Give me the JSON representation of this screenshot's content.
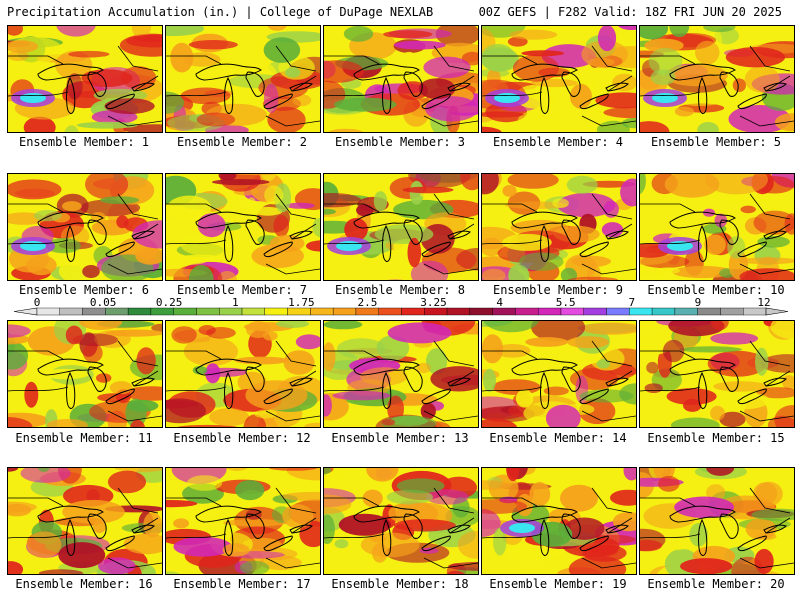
{
  "header": {
    "left_title": "Precipitation Accumulation (in.) | College of DuPage NEXLAB",
    "right_title": "00Z GEFS | F282 Valid: 18Z FRI JUN 20 2025"
  },
  "colors": {
    "trace": "#f0e21a",
    "light_green": "#9ad14a",
    "green": "#5aae3a",
    "dark_green": "#2e8b3c",
    "yellow": "#f5f011",
    "orange": "#f5a11b",
    "red": "#e0251c",
    "dark_red": "#b01226",
    "magenta": "#d227b8",
    "violet": "#a33fe0",
    "cyan": "#39e6f0",
    "gray": "#a0a0a0"
  },
  "scale": {
    "labels": [
      "0",
      "0.05",
      "0.25",
      "1",
      "1.75",
      "2.5",
      "3.25",
      "4",
      "5.5",
      "7",
      "9",
      "12"
    ],
    "colors": [
      "#e6e6e6",
      "#bfbfbf",
      "#8f8f8f",
      "#6e9e6e",
      "#2e8b3c",
      "#3c9e3c",
      "#5aae3a",
      "#7fc243",
      "#9ad14a",
      "#c4e03c",
      "#f5f011",
      "#f5d216",
      "#f5b51b",
      "#f5a11b",
      "#f07a1a",
      "#eb4f1b",
      "#e0251c",
      "#c8141f",
      "#b01226",
      "#8e0e2e",
      "#a0125a",
      "#c81e8e",
      "#d227b8",
      "#e34ae0",
      "#a33fe0",
      "#7a7aff",
      "#39e6f0",
      "#36c8c8",
      "#5ab0b0",
      "#8a8a8a",
      "#a0a0a0",
      "#c8c8c8"
    ]
  },
  "members": [
    {
      "label": "Ensemble Member: 1"
    },
    {
      "label": "Ensemble Member: 2"
    },
    {
      "label": "Ensemble Member: 3"
    },
    {
      "label": "Ensemble Member: 4"
    },
    {
      "label": "Ensemble Member: 5"
    },
    {
      "label": "Ensemble Member: 6"
    },
    {
      "label": "Ensemble Member: 7"
    },
    {
      "label": "Ensemble Member: 8"
    },
    {
      "label": "Ensemble Member: 9"
    },
    {
      "label": "Ensemble Member: 10"
    },
    {
      "label": "Ensemble Member: 11"
    },
    {
      "label": "Ensemble Member: 12"
    },
    {
      "label": "Ensemble Member: 13"
    },
    {
      "label": "Ensemble Member: 14"
    },
    {
      "label": "Ensemble Member: 15"
    },
    {
      "label": "Ensemble Member: 16"
    },
    {
      "label": "Ensemble Member: 17"
    },
    {
      "label": "Ensemble Member: 18"
    },
    {
      "label": "Ensemble Member: 19"
    },
    {
      "label": "Ensemble Member: 20"
    }
  ]
}
